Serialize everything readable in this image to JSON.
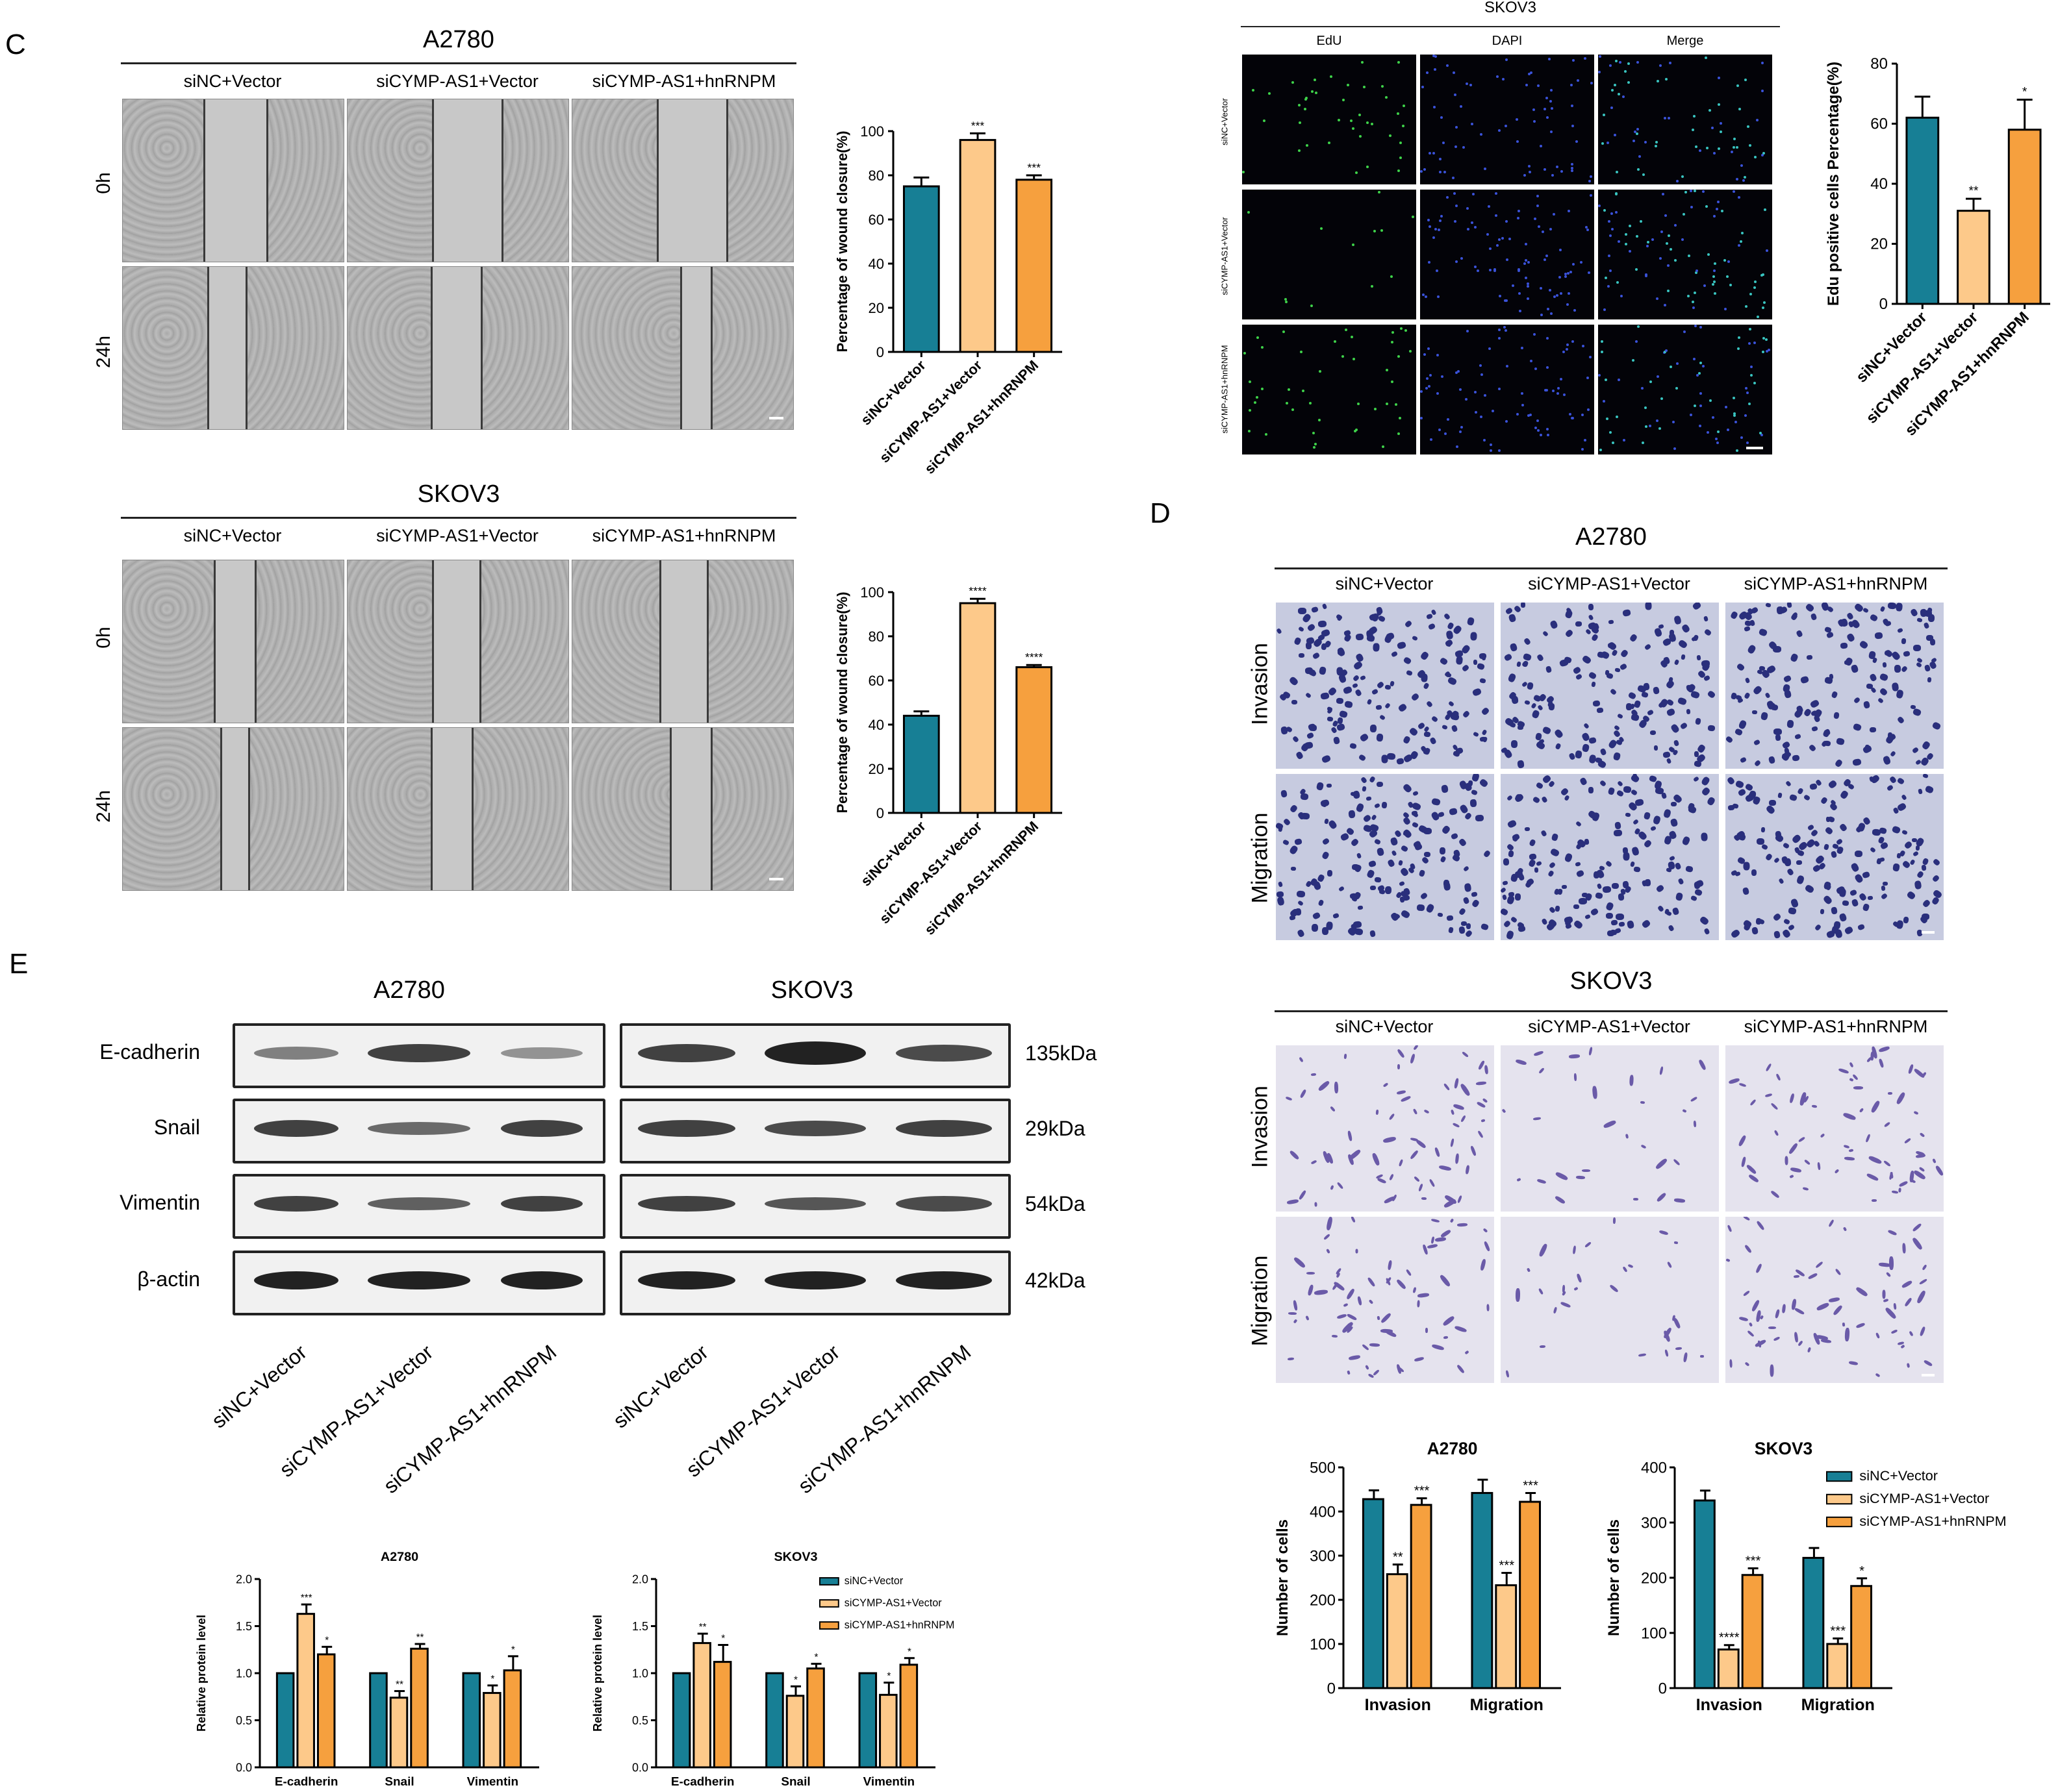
{
  "panels": {
    "C": {
      "letter": "C",
      "a2780_title": "A2780",
      "skov3_title": "SKOV3",
      "columns": [
        "siNC+Vector",
        "siCYMP-AS1+Vector",
        "siCYMP-AS1+hnRNPM"
      ],
      "rows": [
        "0h",
        "24h"
      ],
      "edu_title": "SKOV3",
      "edu_columns": [
        "EdU",
        "DAPI",
        "Merge"
      ],
      "edu_rows": [
        "siNC+Vector",
        "siCYMP-AS1+Vector",
        "siCYMP-AS1+hnRNPM"
      ]
    },
    "D": {
      "letter": "D",
      "a2780_title": "A2780",
      "skov3_title": "SKOV3",
      "columns": [
        "siNC+Vector",
        "siCYMP-AS1+Vector",
        "siCYMP-AS1+hnRNPM"
      ],
      "rows": [
        "Invasion",
        "Migration"
      ]
    },
    "E": {
      "letter": "E",
      "a2780_title": "A2780",
      "skov3_title": "SKOV3",
      "proteins": [
        "E-cadherin",
        "Snail",
        "Vimentin",
        "β-actin"
      ],
      "kda": [
        "135kDa",
        "29kDa",
        "54kDa",
        "42kDa"
      ],
      "lanes": [
        "siNC+Vector",
        "siCYMP-AS1+Vector",
        "siCYMP-AS1+hnRNPM",
        "siNC+Vector",
        "siCYMP-AS1+Vector",
        "siCYMP-AS1+hnRNPM"
      ]
    }
  },
  "colors": {
    "siNC": "#177f95",
    "siCYMP": "#fdc98a",
    "hnRNPM": "#f6a03e"
  },
  "chart_data": [
    {
      "id": "woundA2780",
      "type": "bar",
      "categories": [
        "siNC+Vector",
        "siCYMP-AS1+Vector",
        "siCYMP-AS1+hnRNPM"
      ],
      "values": [
        75,
        96,
        78
      ],
      "errors": [
        4,
        3,
        2
      ],
      "sig": [
        "",
        "***",
        "***"
      ],
      "ylabel": "Percentage of wound closure(%)",
      "ylim": [
        0,
        100
      ],
      "yticks": [
        0,
        20,
        40,
        60,
        80,
        100
      ]
    },
    {
      "id": "woundSKOV3",
      "type": "bar",
      "categories": [
        "siNC+Vector",
        "siCYMP-AS1+Vector",
        "siCYMP-AS1+hnRNPM"
      ],
      "values": [
        44,
        95,
        66
      ],
      "errors": [
        2,
        2,
        1
      ],
      "sig": [
        "",
        "****",
        "****"
      ],
      "ylabel": "Percentage of wound closure(%)",
      "ylim": [
        0,
        100
      ],
      "yticks": [
        0,
        20,
        40,
        60,
        80,
        100
      ]
    },
    {
      "id": "edu",
      "type": "bar",
      "categories": [
        "siNC+Vector",
        "siCYMP-AS1+Vector",
        "siCYMP-AS1+hnRNPM"
      ],
      "values": [
        62,
        31,
        58
      ],
      "errors": [
        7,
        4,
        10
      ],
      "sig": [
        "",
        "**",
        "*"
      ],
      "ylabel": "Edu positive cells Percentage(%)",
      "ylim": [
        0,
        80
      ],
      "yticks": [
        0,
        20,
        40,
        60,
        80
      ]
    },
    {
      "id": "transA2780",
      "type": "bar",
      "title": "A2780",
      "categories": [
        "Invasion",
        "Migration"
      ],
      "series": [
        {
          "name": "siNC+Vector",
          "values": [
            428,
            442
          ],
          "errors": [
            20,
            30
          ],
          "sig": [
            "",
            ""
          ]
        },
        {
          "name": "siCYMP-AS1+Vector",
          "values": [
            258,
            233
          ],
          "errors": [
            22,
            28
          ],
          "sig": [
            "**",
            "***"
          ]
        },
        {
          "name": "siCYMP-AS1+hnRNPM",
          "values": [
            415,
            422
          ],
          "errors": [
            15,
            20
          ],
          "sig": [
            "***",
            "***"
          ]
        }
      ],
      "ylabel": "Number of cells",
      "ylim": [
        0,
        500
      ],
      "yticks": [
        0,
        100,
        200,
        300,
        400,
        500
      ]
    },
    {
      "id": "transSKOV3",
      "type": "bar",
      "title": "SKOV3",
      "categories": [
        "Invasion",
        "Migration"
      ],
      "series": [
        {
          "name": "siNC+Vector",
          "values": [
            340,
            236
          ],
          "errors": [
            18,
            18
          ],
          "sig": [
            "",
            ""
          ]
        },
        {
          "name": "siCYMP-AS1+Vector",
          "values": [
            70,
            80
          ],
          "errors": [
            8,
            10
          ],
          "sig": [
            "****",
            "***"
          ]
        },
        {
          "name": "siCYMP-AS1+hnRNPM",
          "values": [
            205,
            185
          ],
          "errors": [
            12,
            14
          ],
          "sig": [
            "***",
            "*"
          ]
        }
      ],
      "legend": [
        "siNC+Vector",
        "siCYMP-AS1+Vector",
        "siCYMP-AS1+hnRNPM"
      ],
      "ylabel": "Number of cells",
      "ylim": [
        0,
        400
      ],
      "yticks": [
        0,
        100,
        200,
        300,
        400
      ]
    },
    {
      "id": "protA2780",
      "type": "bar",
      "title": "A2780",
      "categories": [
        "E-cadherin",
        "Snail",
        "Vimentin"
      ],
      "series": [
        {
          "name": "siNC+Vector",
          "values": [
            1.0,
            1.0,
            1.0
          ],
          "errors": [
            0,
            0,
            0
          ],
          "sig": [
            "",
            "",
            ""
          ]
        },
        {
          "name": "siCYMP-AS1+Vector",
          "values": [
            1.63,
            0.74,
            0.79
          ],
          "errors": [
            0.1,
            0.07,
            0.08
          ],
          "sig": [
            "***",
            "**",
            "*"
          ]
        },
        {
          "name": "siCYMP-AS1+hnRNPM",
          "values": [
            1.2,
            1.26,
            1.03
          ],
          "errors": [
            0.08,
            0.05,
            0.15
          ],
          "sig": [
            "*",
            "**",
            "*"
          ]
        }
      ],
      "ylabel": "Relative protein level",
      "ylim": [
        0,
        2.0
      ],
      "yticks": [
        0.0,
        0.5,
        1.0,
        1.5,
        2.0
      ]
    },
    {
      "id": "protSKOV3",
      "type": "bar",
      "title": "SKOV3",
      "categories": [
        "E-cadherin",
        "Snail",
        "Vimentin"
      ],
      "series": [
        {
          "name": "siNC+Vector",
          "values": [
            1.0,
            1.0,
            1.0
          ],
          "errors": [
            0,
            0,
            0
          ],
          "sig": [
            "",
            "",
            ""
          ]
        },
        {
          "name": "siCYMP-AS1+Vector",
          "values": [
            1.32,
            0.76,
            0.77
          ],
          "errors": [
            0.1,
            0.1,
            0.13
          ],
          "sig": [
            "**",
            "*",
            "*"
          ]
        },
        {
          "name": "siCYMP-AS1+hnRNPM",
          "values": [
            1.12,
            1.05,
            1.09
          ],
          "errors": [
            0.18,
            0.05,
            0.07
          ],
          "sig": [
            "*",
            "*",
            "*"
          ]
        }
      ],
      "legend": [
        "siNC+Vector",
        "siCYMP-AS1+Vector",
        "siCYMP-AS1+hnRNPM"
      ],
      "ylabel": "Relative protein level",
      "ylim": [
        0,
        2.0
      ],
      "yticks": [
        0.0,
        0.5,
        1.0,
        1.5,
        2.0
      ]
    }
  ]
}
